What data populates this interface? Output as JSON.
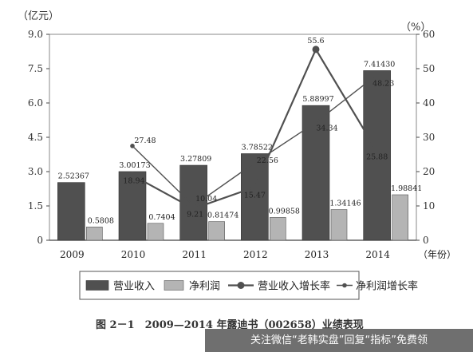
{
  "chart_data": {
    "type": "bar",
    "title": "",
    "caption": "图 2－1　2009—2014 年露迪书（002658）业绩表现",
    "categories": [
      "2009",
      "2010",
      "2011",
      "2012",
      "2013",
      "2014"
    ],
    "left_axis": {
      "unit": "（亿元）",
      "ylim": [
        0,
        9.0
      ],
      "ticks": [
        "0",
        "1.5",
        "3.0",
        "4.5",
        "6.0",
        "7.5",
        "9.0"
      ]
    },
    "right_axis": {
      "unit": "（%）",
      "ylim": [
        0,
        60
      ],
      "ticks": [
        "0",
        "10",
        "20",
        "30",
        "40",
        "50",
        "60"
      ]
    },
    "xlabel": "（年份）",
    "series": [
      {
        "name": "营业收入",
        "kind": "bar",
        "axis": "left",
        "color": "#505050",
        "values": [
          2.52367,
          3.00173,
          3.27809,
          3.78522,
          5.88997,
          7.4143
        ],
        "labels": [
          "2.52367",
          "3.00173",
          "3.27809",
          "3.78522",
          "5.88997",
          "7.41430"
        ]
      },
      {
        "name": "净利润",
        "kind": "bar",
        "axis": "left",
        "color": "#b4b4b4",
        "values": [
          0.5808,
          0.7404,
          0.81474,
          0.99858,
          1.34146,
          1.98841
        ],
        "labels": [
          "0.5808",
          "0.7404",
          "0.81474",
          "0.99858",
          "1.34146",
          "1.98841"
        ]
      },
      {
        "name": "营业收入增长率",
        "kind": "line",
        "axis": "right",
        "color": "#505050",
        "x": [
          "2010",
          "2011",
          "2012",
          "2013",
          "2014"
        ],
        "values": [
          18.94,
          9.21,
          15.47,
          55.6,
          25.88
        ],
        "labels": [
          "18.94",
          "9.21",
          "15.47",
          "55.6",
          "25.88"
        ]
      },
      {
        "name": "净利润增长率",
        "kind": "line",
        "axis": "right",
        "color": "#505050",
        "x": [
          "2010",
          "2011",
          "2012",
          "2013",
          "2014"
        ],
        "values": [
          27.48,
          10.04,
          22.56,
          34.34,
          48.23
        ],
        "labels": [
          "27.48",
          "10.04",
          "22.56",
          "34.34",
          "48.23"
        ]
      }
    ],
    "legend": {
      "placement": "bottom",
      "entries": [
        "营业收入",
        "净利润",
        "营业收入增长率",
        "净利润增长率"
      ]
    }
  },
  "watermark": "关注微信“老韩实盘”回复“指标”免费领"
}
